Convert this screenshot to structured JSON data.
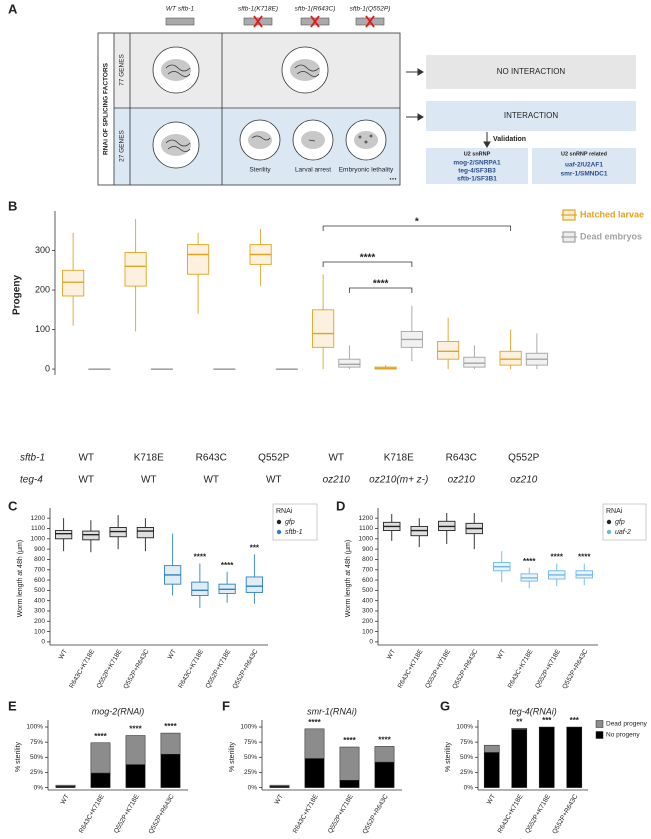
{
  "diagram": {
    "panel": "A",
    "strains": [
      "WT sftb-1",
      "sftb-1(K718E)",
      "sftb-1(R643C)",
      "sftb-1(Q552P)"
    ],
    "rnai_label": "RNAi OF SPLICING FACTORS",
    "rows": [
      "77 GENES",
      "27 GENES"
    ],
    "phenotypes": [
      "Sterility",
      "Larval arrest",
      "Embryonic lethality"
    ],
    "more": "...",
    "no_interaction": "NO INTERACTION",
    "interaction": "INTERACTION",
    "validation": "Validation",
    "groups": [
      {
        "title": "U2 snRNP",
        "genes": [
          "mog-2/SNRPA1",
          "teg-4/SF3B3",
          "sftb-1/SF3B1"
        ]
      },
      {
        "title": "U2 snRNP related",
        "genes": [
          "uaf-2/U2AF1",
          "smr-1/SMNDC1"
        ]
      }
    ]
  },
  "chart_data": [
    {
      "panel": "B",
      "type": "box",
      "ylabel": "Progeny",
      "ylim": [
        -15,
        390
      ],
      "yticks": [
        0,
        100,
        200,
        300
      ],
      "x_rows": [
        {
          "label": "sftb-1",
          "values": [
            "WT",
            "K718E",
            "R643C",
            "Q552P",
            "WT",
            "K718E",
            "R643C",
            "Q552P"
          ]
        },
        {
          "label": "teg-4",
          "values": [
            "WT",
            "WT",
            "WT",
            "WT",
            "oz210",
            "oz210(m+ z-)",
            "oz210",
            "oz210"
          ]
        }
      ],
      "series": [
        {
          "name": "Hatched larvae",
          "color": "#e3a320",
          "low": [
            110,
            95,
            140,
            210,
            0,
            0,
            0,
            0
          ],
          "q1": [
            185,
            210,
            240,
            265,
            55,
            0,
            25,
            10
          ],
          "median": [
            220,
            260,
            290,
            290,
            90,
            2,
            45,
            25
          ],
          "q3": [
            250,
            295,
            315,
            315,
            150,
            5,
            70,
            45
          ],
          "high": [
            345,
            380,
            345,
            355,
            240,
            10,
            130,
            100
          ]
        },
        {
          "name": "Dead embryos",
          "color": "#a3a3a3",
          "low": [
            0,
            0,
            0,
            0,
            0,
            20,
            0,
            0
          ],
          "q1": [
            0,
            0,
            0,
            0,
            5,
            55,
            5,
            10
          ],
          "median": [
            0,
            0,
            0,
            0,
            12,
            75,
            15,
            25
          ],
          "q3": [
            0,
            0,
            0,
            0,
            25,
            95,
            30,
            40
          ],
          "high": [
            0,
            0,
            0,
            0,
            60,
            160,
            60,
            90
          ]
        }
      ],
      "significance": [
        "*",
        "****",
        "****"
      ],
      "legend": "right"
    },
    {
      "panel": "C",
      "type": "box",
      "ylabel": "Worm length at 48h (μm)",
      "ylim": [
        -30,
        1260
      ],
      "yticks": [
        0,
        100,
        200,
        300,
        400,
        500,
        600,
        700,
        800,
        900,
        1000,
        1100,
        1200
      ],
      "categories": [
        "WT",
        "R643C+K718E",
        "Q552P+K718E",
        "Q552P+R643C",
        "WT",
        "R643C+K718E",
        "Q552P+K718E",
        "Q552P+R643C"
      ],
      "legend_title": "RNAi",
      "legend": "right",
      "series": [
        {
          "name": "gfp",
          "color": "#222222",
          "low": [
            880,
            870,
            900,
            880,
            null,
            null,
            null,
            null
          ],
          "q1": [
            1000,
            990,
            1020,
            1010,
            null,
            null,
            null,
            null
          ],
          "median": [
            1050,
            1040,
            1070,
            1075,
            null,
            null,
            null,
            null
          ],
          "q3": [
            1080,
            1075,
            1110,
            1110,
            null,
            null,
            null,
            null
          ],
          "high": [
            1200,
            1180,
            1230,
            1200,
            null,
            null,
            null,
            null
          ]
        },
        {
          "name": "sftb-1",
          "color": "#2f80c4",
          "low": [
            null,
            null,
            null,
            null,
            450,
            330,
            380,
            370
          ],
          "q1": [
            null,
            null,
            null,
            null,
            560,
            450,
            470,
            480
          ],
          "median": [
            null,
            null,
            null,
            null,
            650,
            500,
            510,
            540
          ],
          "q3": [
            null,
            null,
            null,
            null,
            740,
            580,
            560,
            630
          ],
          "high": [
            null,
            null,
            null,
            null,
            1050,
            760,
            680,
            850
          ]
        }
      ],
      "significance": [
        null,
        null,
        null,
        null,
        null,
        "****",
        "****",
        "***"
      ]
    },
    {
      "panel": "D",
      "type": "box",
      "ylabel": "Worm length at 48h (μm)",
      "ylim": [
        -30,
        1260
      ],
      "yticks": [
        0,
        100,
        200,
        300,
        400,
        500,
        600,
        700,
        800,
        900,
        1000,
        1100,
        1200
      ],
      "categories": [
        "WT",
        "R643C+K718E",
        "Q552P+K718E",
        "Q552P+R643C",
        "WT",
        "R643C+K718E",
        "Q552P+K718E",
        "Q552P+R643C"
      ],
      "legend_title": "RNAi",
      "legend": "right",
      "series": [
        {
          "name": "gfp",
          "color": "#222222",
          "low": [
            980,
            920,
            950,
            900,
            null,
            null,
            null,
            null
          ],
          "q1": [
            1080,
            1030,
            1080,
            1050,
            null,
            null,
            null,
            null
          ],
          "median": [
            1120,
            1080,
            1120,
            1100,
            null,
            null,
            null,
            null
          ],
          "q3": [
            1160,
            1120,
            1170,
            1150,
            null,
            null,
            null,
            null
          ],
          "high": [
            1240,
            1200,
            1250,
            1250,
            null,
            null,
            null,
            null
          ]
        },
        {
          "name": "uaf-2",
          "color": "#6fb6e6",
          "low": [
            null,
            null,
            null,
            null,
            580,
            520,
            540,
            550
          ],
          "q1": [
            null,
            null,
            null,
            null,
            690,
            590,
            610,
            620
          ],
          "median": [
            null,
            null,
            null,
            null,
            730,
            620,
            650,
            650
          ],
          "q3": [
            null,
            null,
            null,
            null,
            770,
            660,
            690,
            690
          ],
          "high": [
            null,
            null,
            null,
            null,
            880,
            720,
            760,
            760
          ]
        }
      ],
      "significance": [
        null,
        null,
        null,
        null,
        null,
        "****",
        "****",
        "****"
      ]
    },
    {
      "panel": "E",
      "type": "stacked_bar",
      "title": "mog-2(RNAi)",
      "ylabel": "% sterility",
      "ylim": [
        -4,
        105
      ],
      "yticks": [
        {
          "value": 0,
          "label": "0%"
        },
        {
          "value": 25,
          "label": "25%"
        },
        {
          "value": 50,
          "label": "50%"
        },
        {
          "value": 75,
          "label": "75%"
        },
        {
          "value": 100,
          "label": "100%"
        }
      ],
      "categories": [
        "WT",
        "R643C+K718E",
        "Q552P+K718E",
        "Q552P+R643C"
      ],
      "series": [
        {
          "color": "#000000",
          "values": [
            2,
            24,
            38,
            55
          ]
        },
        {
          "color": "#8c8c8c",
          "values": [
            2,
            50,
            48,
            35
          ]
        }
      ],
      "significance": [
        null,
        "****",
        "****",
        "****"
      ]
    },
    {
      "panel": "F",
      "type": "stacked_bar",
      "title": "smr-1(RNAi)",
      "ylabel": "% sterility",
      "ylim": [
        -4,
        105
      ],
      "yticks": [
        {
          "value": 0,
          "label": "0%"
        },
        {
          "value": 25,
          "label": "25%"
        },
        {
          "value": 50,
          "label": "50%"
        },
        {
          "value": 75,
          "label": "75%"
        },
        {
          "value": 100,
          "label": "100%"
        }
      ],
      "categories": [
        "WT",
        "R643C+K718E",
        "Q552P+K718E",
        "Q552P+R643C"
      ],
      "series": [
        {
          "color": "#000000",
          "values": [
            2,
            48,
            12,
            42
          ]
        },
        {
          "color": "#8c8c8c",
          "values": [
            2,
            49,
            55,
            26
          ]
        }
      ],
      "significance": [
        null,
        "****",
        "****",
        "****"
      ]
    },
    {
      "panel": "G",
      "type": "stacked_bar",
      "title": "teg-4(RNAi)",
      "ylabel": "% sterility",
      "ylim": [
        -4,
        105
      ],
      "yticks": [
        {
          "value": 0,
          "label": "0%"
        },
        {
          "value": 25,
          "label": "25%"
        },
        {
          "value": 50,
          "label": "50%"
        },
        {
          "value": 75,
          "label": "75%"
        },
        {
          "value": 100,
          "label": "100%"
        }
      ],
      "categories": [
        "WT",
        "R643C+K718E",
        "Q552P+K718E",
        "Q552P+R643C"
      ],
      "series": [
        {
          "name": "No progeny",
          "color": "#000000",
          "values": [
            58,
            96,
            100,
            100
          ]
        },
        {
          "name": "Dead progeny",
          "color": "#8c8c8c",
          "values": [
            12,
            2,
            0,
            0
          ]
        }
      ],
      "significance": [
        null,
        "**",
        "***",
        "***"
      ],
      "legend": "right"
    }
  ]
}
